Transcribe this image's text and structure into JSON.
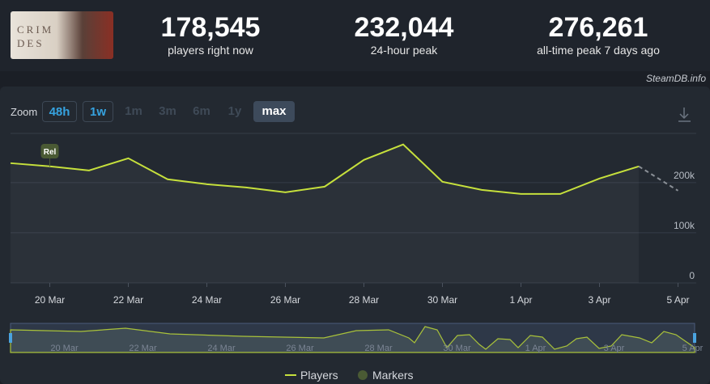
{
  "header": {
    "image_text": "CRIM DES",
    "stats": [
      {
        "value": "178,545",
        "label": "players right now"
      },
      {
        "value": "232,044",
        "label": "24-hour peak"
      },
      {
        "value": "276,261",
        "label": "all-time peak 7 days ago"
      }
    ],
    "source": "SteamDB.info"
  },
  "zoom": {
    "label": "Zoom",
    "options": [
      {
        "label": "48h",
        "state": "link"
      },
      {
        "label": "1w",
        "state": "link"
      },
      {
        "label": "1m",
        "state": "disabled"
      },
      {
        "label": "3m",
        "state": "disabled"
      },
      {
        "label": "6m",
        "state": "disabled"
      },
      {
        "label": "1y",
        "state": "disabled"
      },
      {
        "label": "max",
        "state": "active"
      }
    ]
  },
  "chart_data": {
    "type": "line",
    "categories": [
      null,
      "20 Mar",
      null,
      "22 Mar",
      null,
      "24 Mar",
      null,
      "26 Mar",
      null,
      "28 Mar",
      null,
      "30 Mar",
      null,
      "1 Apr",
      null,
      "3 Apr",
      null,
      "5 Apr"
    ],
    "series": [
      {
        "name": "Players",
        "color": "#c6e03c",
        "values": [
          238700,
          232300,
          224200,
          248400,
          206500,
          196800,
          190300,
          180600,
          191900,
          245200,
          276000,
          201600,
          185500,
          177400,
          177400,
          208100,
          232300,
          183900
        ]
      }
    ],
    "dashed_last_segment": true,
    "markers": {
      "name": "Markers",
      "color": "#4a5a34",
      "items": [
        {
          "label": "Rel",
          "index": 1
        }
      ]
    },
    "ylim": [
      0,
      298000
    ],
    "yticks": [
      0,
      {
        "value": 100000,
        "label": "100k"
      },
      {
        "value": 200000,
        "label": "200k"
      }
    ],
    "grid": true
  }
}
